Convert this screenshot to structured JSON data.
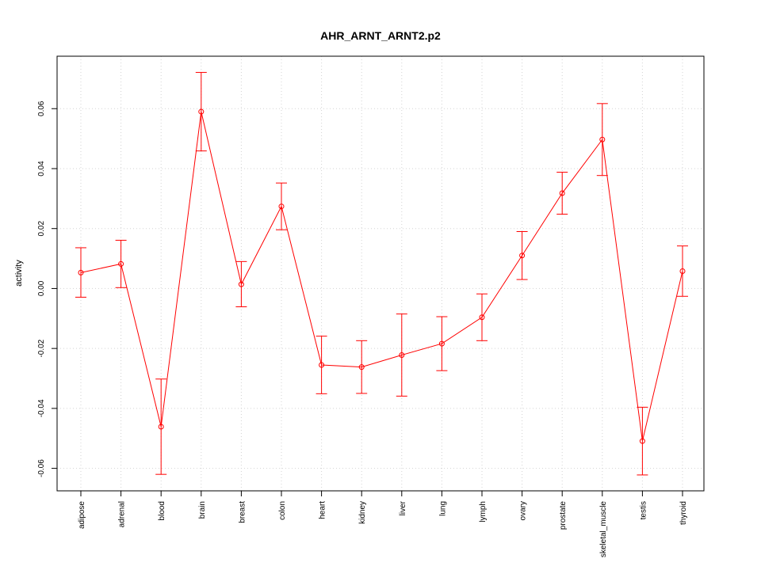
{
  "chart_data": {
    "type": "line",
    "title": "AHR_ARNT_ARNT2.p2",
    "xlabel": "",
    "ylabel": "activity",
    "categories": [
      "adipose",
      "adrenal",
      "blood",
      "brain",
      "breast",
      "colon",
      "heart",
      "kidney",
      "liver",
      "lung",
      "lymph",
      "ovary",
      "prostate",
      "skeletal_muscle",
      "testis",
      "thyroid"
    ],
    "series": [
      {
        "values": [
          0.0053,
          0.0082,
          -0.0461,
          0.059,
          0.0014,
          0.0274,
          -0.0255,
          -0.0262,
          -0.0222,
          -0.0184,
          -0.0096,
          0.011,
          0.0318,
          0.0497,
          -0.0509,
          0.0058
        ],
        "upper": [
          0.0136,
          0.0161,
          -0.0302,
          0.0721,
          0.009,
          0.0352,
          -0.0159,
          -0.0174,
          -0.0085,
          -0.0094,
          -0.0018,
          0.019,
          0.0388,
          0.0617,
          -0.0396,
          0.0142
        ],
        "lower": [
          -0.0029,
          0.0003,
          -0.062,
          0.0459,
          -0.0061,
          0.0196,
          -0.0351,
          -0.035,
          -0.0359,
          -0.0274,
          -0.0174,
          0.003,
          0.0248,
          0.0377,
          -0.0622,
          -0.0026
        ]
      }
    ],
    "ylim": [
      -0.0675,
      0.0775
    ],
    "yticks": [
      -0.06,
      -0.04,
      -0.02,
      0.0,
      0.02,
      0.04,
      0.06
    ],
    "ytick_labels": [
      "-0.06",
      "-0.04",
      "-0.02",
      "0.00",
      "0.02",
      "0.04",
      "0.06"
    ],
    "grid": true,
    "colors": {
      "series": "#ff0000",
      "grid": "#d3d3d3",
      "axis": "#000000"
    }
  }
}
